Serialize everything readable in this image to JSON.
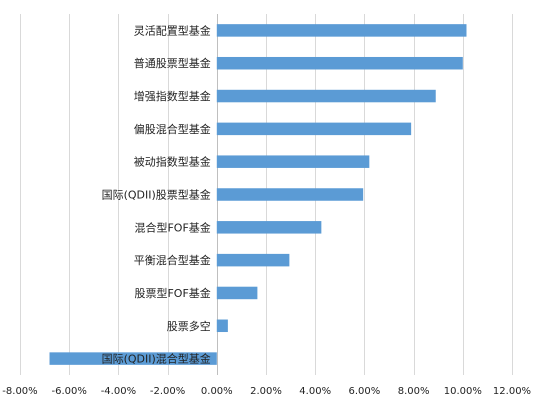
{
  "chart_data": {
    "type": "bar",
    "orientation": "horizontal",
    "title": "",
    "xlabel": "",
    "ylabel": "",
    "categories": [
      "灵活配置型基金",
      "普通股票型基金",
      "增强指数型基金",
      "偏股混合型基金",
      "被动指数型基金",
      "国际(QDII)股票型基金",
      "混合型FOF基金",
      "平衡混合型基金",
      "股票型FOF基金",
      "股票多空",
      "国际(QDII)混合型基金"
    ],
    "values": [
      10.15,
      10.0,
      8.9,
      7.9,
      6.2,
      5.95,
      4.25,
      2.95,
      1.65,
      0.45,
      -6.8
    ],
    "xlim": [
      -8,
      12
    ],
    "xticks": [
      -8,
      -6,
      -4,
      -2,
      0,
      2,
      4,
      6,
      8,
      10,
      12
    ],
    "xtick_labels": [
      "-8.00%",
      "-6.00%",
      "-4.00%",
      "-2.00%",
      "0.00%",
      "2.00%",
      "4.00%",
      "6.00%",
      "8.00%",
      "10.00%",
      "12.00%"
    ],
    "grid": "vertical",
    "legend": "none",
    "bar_color": "#5b9bd5"
  }
}
